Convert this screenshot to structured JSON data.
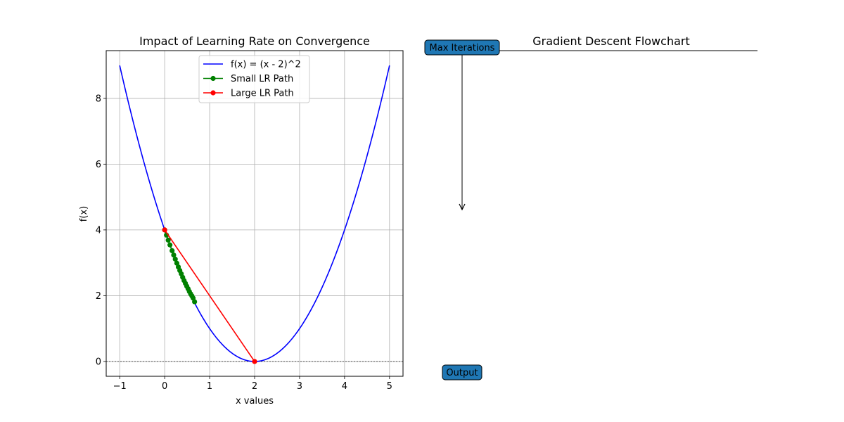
{
  "chart_data": [
    {
      "type": "line",
      "title": "Impact of Learning Rate on Convergence",
      "xlabel": "x values",
      "ylabel": "f(x)",
      "xlim": [
        -1.3,
        5.3
      ],
      "ylim": [
        -0.45,
        9.45
      ],
      "xticks": [
        -1,
        0,
        1,
        2,
        3,
        4,
        5
      ],
      "yticks": [
        0,
        2,
        4,
        6,
        8
      ],
      "grid": true,
      "legend_position": "upper center",
      "reference_lines": [
        {
          "axis": "y",
          "value": 0,
          "style": "dashed",
          "color": "#000000"
        }
      ],
      "series": [
        {
          "name": "f(x) = (x - 2)^2",
          "color": "#0000ff",
          "marker": "none",
          "function": "(x - 2)^2",
          "x_range": [
            -1,
            5
          ]
        },
        {
          "name": "Small LR Path",
          "color": "#008000",
          "marker": "circle",
          "x": [
            0,
            0.04,
            0.0792,
            0.1176,
            0.1652,
            0.2009,
            0.2359,
            0.2702,
            0.3038,
            0.3366,
            0.3689,
            0.4004,
            0.4314,
            0.4618,
            0.4915,
            0.5207,
            0.5493,
            0.5773,
            0.6048,
            0.6317,
            0.6651
          ],
          "y": [
            4,
            3.8416,
            3.6896,
            3.5431,
            3.3687,
            3.2368,
            3.1119,
            2.9873,
            2.8738,
            2.7668,
            2.6654,
            2.5585,
            2.4606,
            2.3747,
            2.2886,
            2.21,
            2.1279,
            2.056,
            1.9935,
            1.9275,
            1.8159
          ]
        },
        {
          "name": "Large LR Path",
          "color": "#ff0000",
          "marker": "circle",
          "x": [
            0,
            2
          ],
          "y": [
            4,
            0
          ]
        }
      ]
    },
    {
      "type": "diagram",
      "title": "Gradient Descent Flowchart",
      "nodes": [
        {
          "id": "max-iterations",
          "label": "Max Iterations",
          "fill": "#1f77b4"
        },
        {
          "id": "output",
          "label": "Output",
          "fill": "#1f77b4"
        }
      ]
    }
  ]
}
